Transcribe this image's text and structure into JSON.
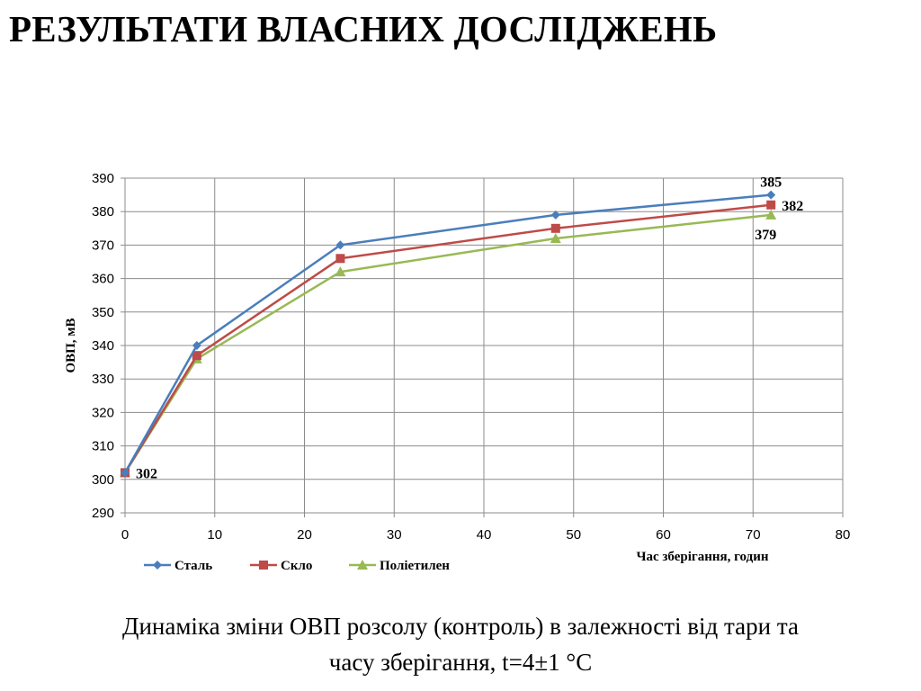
{
  "title": "РЕЗУЛЬТАТИ  ВЛАСНИХ ДОСЛІДЖЕНЬ",
  "caption": {
    "line1": "Динаміка зміни ОВП розсолу (контроль) в залежності від тари та",
    "line2": "часу зберігання, t=4±1 °C"
  },
  "chart_data": {
    "type": "line",
    "xlabel": "Час зберігання, годин",
    "ylabel": "ОВП, мВ",
    "xlim": [
      0,
      80
    ],
    "ylim": [
      290,
      390
    ],
    "x_ticks": [
      0,
      10,
      20,
      30,
      40,
      50,
      60,
      70,
      80
    ],
    "y_ticks": [
      290,
      300,
      310,
      320,
      330,
      340,
      350,
      360,
      370,
      380,
      390
    ],
    "grid": true,
    "legend_position": "bottom-left",
    "series": [
      {
        "name": "Сталь",
        "color": "#4a7ebb",
        "marker": "diamond",
        "x": [
          0,
          8,
          24,
          48,
          72
        ],
        "values": [
          302,
          340,
          370,
          379,
          385
        ]
      },
      {
        "name": "Скло",
        "color": "#be4b48",
        "marker": "square",
        "x": [
          0,
          8,
          24,
          48,
          72
        ],
        "values": [
          302,
          337,
          366,
          375,
          382
        ]
      },
      {
        "name": "Поліетилен",
        "color": "#98b954",
        "marker": "triangle",
        "x": [
          0,
          8,
          24,
          48,
          72
        ],
        "values": [
          302,
          336,
          362,
          372,
          379
        ]
      }
    ],
    "data_labels": [
      {
        "text": "302",
        "x": 0,
        "y": 302,
        "anchor": "right"
      },
      {
        "text": "385",
        "x": 72,
        "y": 385,
        "anchor": "above"
      },
      {
        "text": "382",
        "x": 72,
        "y": 382,
        "anchor": "right"
      },
      {
        "text": "379",
        "x": 72,
        "y": 379,
        "anchor": "below"
      }
    ]
  }
}
